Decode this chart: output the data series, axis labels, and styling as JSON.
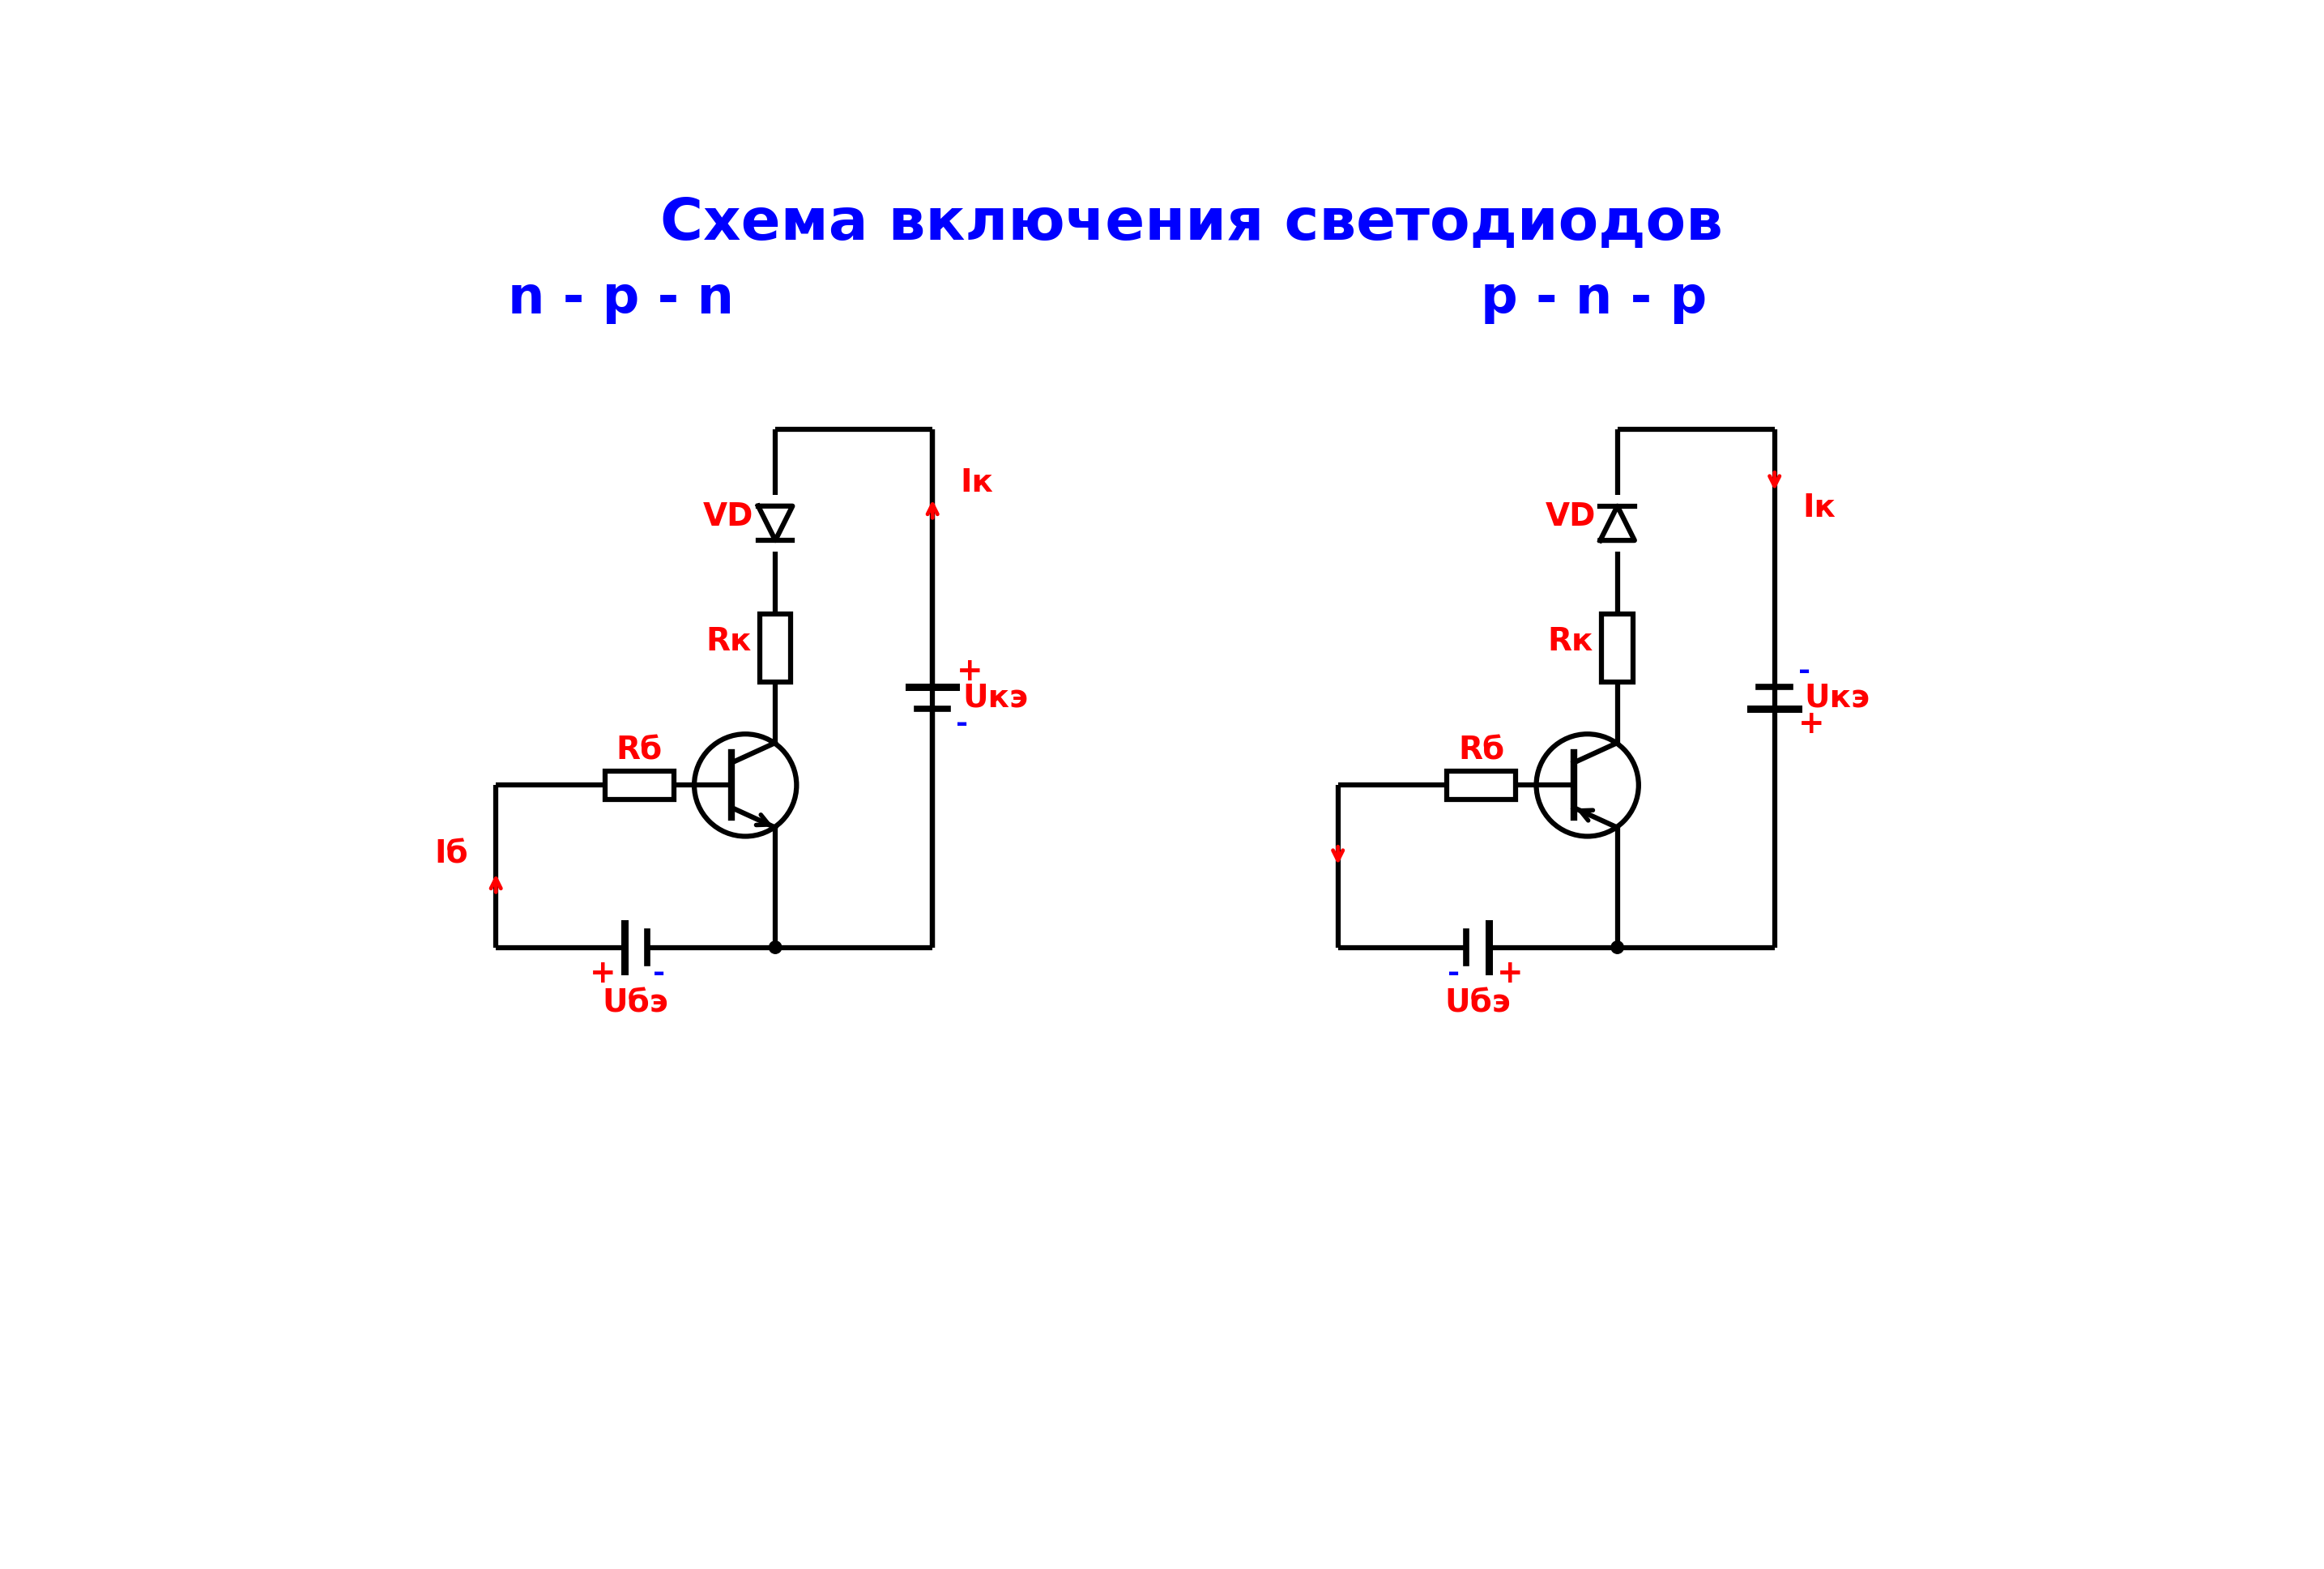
{
  "title": "Схема включения светодиодов",
  "title_color": "#0000FF",
  "title_fontsize": 52,
  "label_npn": "n - p - n",
  "label_pnp": "p - n - p",
  "label_color": "#0000FF",
  "label_fontsize": 46,
  "red_color": "#FF0000",
  "blue_color": "#0000FF",
  "black_color": "#000000",
  "bg_color": "#FFFFFF",
  "lw": 4.5,
  "fs_label": 28
}
